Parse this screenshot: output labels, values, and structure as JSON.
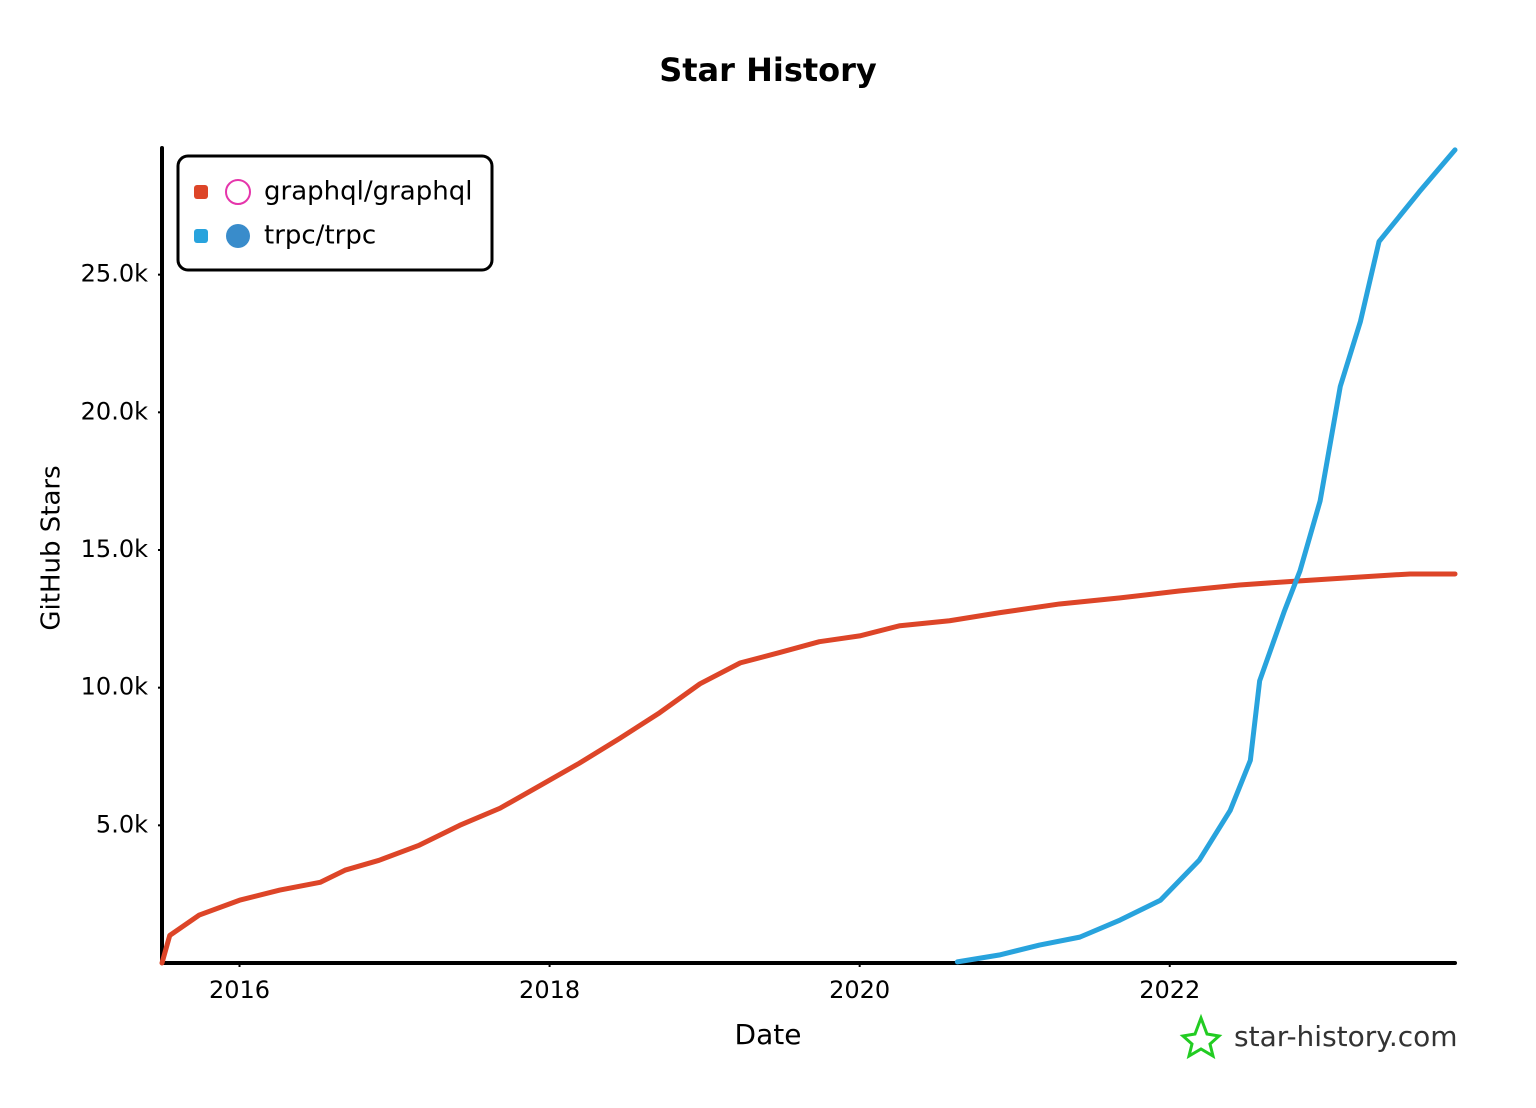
{
  "chart_data": {
    "type": "line",
    "title": "Star History",
    "x_label": "Date",
    "y_label": "GitHub Stars",
    "watermark": "star-history.com",
    "legend_position": "top-left",
    "xlim": [
      2015.5,
      2023.84
    ],
    "xticks": [
      2016,
      2018,
      2020,
      2022
    ],
    "ylim": [
      0,
      29600
    ],
    "yticks": [
      {
        "value": 5000,
        "label": "5.0k"
      },
      {
        "value": 10000,
        "label": "10.0k"
      },
      {
        "value": 15000,
        "label": "15.0k"
      },
      {
        "value": 20000,
        "label": "20.0k"
      },
      {
        "value": 25000,
        "label": "25.0k"
      }
    ],
    "series": [
      {
        "name": "graphql/graphql",
        "color": "#dd4528",
        "x": [
          2015.5,
          2015.55,
          2015.74,
          2016.0,
          2016.26,
          2016.52,
          2016.68,
          2016.9,
          2017.16,
          2017.42,
          2017.68,
          2017.94,
          2018.19,
          2018.45,
          2018.71,
          2018.97,
          2019.23,
          2019.48,
          2019.74,
          2020.0,
          2020.26,
          2020.58,
          2020.9,
          2021.29,
          2021.68,
          2022.06,
          2022.45,
          2022.84,
          2023.23,
          2023.55,
          2023.84
        ],
        "values": [
          0,
          1000,
          1740,
          2280,
          2650,
          2930,
          3370,
          3730,
          4280,
          5000,
          5620,
          6450,
          7250,
          8150,
          9090,
          10140,
          10900,
          11270,
          11670,
          11880,
          12250,
          12430,
          12720,
          13040,
          13260,
          13510,
          13730,
          13880,
          14020,
          14130,
          14130
        ]
      },
      {
        "name": "trpc/trpc",
        "color": "#28a3dd",
        "x": [
          2020.63,
          2020.9,
          2021.16,
          2021.42,
          2021.68,
          2021.94,
          2022.19,
          2022.39,
          2022.52,
          2022.58,
          2022.74,
          2022.84,
          2022.97,
          2023.1,
          2023.23,
          2023.35,
          2023.61,
          2023.84
        ],
        "values": [
          40,
          290,
          650,
          940,
          1560,
          2280,
          3730,
          5540,
          7360,
          10250,
          12790,
          14240,
          16780,
          20940,
          23300,
          26200,
          28010,
          29530
        ]
      }
    ]
  }
}
